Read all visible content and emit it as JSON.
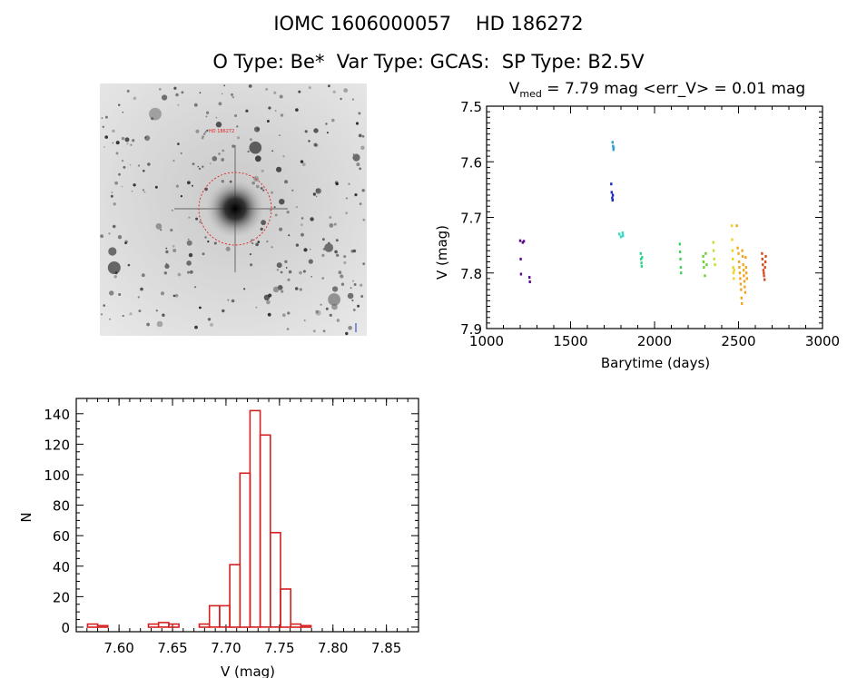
{
  "header": {
    "title_line1": "IOMC 1606000057    HD 186272",
    "title_line2": "O Type: Be*  Var Type: GCAS:  SP Type: B2.5V"
  },
  "finder": {
    "target_label": "HD 186272",
    "corner_tl": "",
    "corner_bl": "",
    "corner_bc": "",
    "corner_br": ""
  },
  "chart_data": [
    {
      "type": "scatter",
      "title_parts": [
        "V",
        "med",
        " = 7.79 mag <err_V> = 0.01 mag"
      ],
      "xlabel": "Barytime (days)",
      "ylabel": "V (mag)",
      "xlim": [
        1000,
        3000
      ],
      "ylim": [
        7.9,
        7.5
      ],
      "y_inverted": true,
      "xticks": [
        1000,
        1500,
        2000,
        2500,
        3000
      ],
      "yticks": [
        7.5,
        7.6,
        7.7,
        7.8,
        7.9
      ],
      "groups": [
        {
          "color": "#5a0a8c",
          "points": [
            [
              1200,
              7.742
            ],
            [
              1203,
              7.775
            ],
            [
              1205,
              7.802
            ],
            [
              1215,
              7.745
            ],
            [
              1222,
              7.743
            ],
            [
              1255,
              7.808
            ],
            [
              1258,
              7.816
            ]
          ]
        },
        {
          "color": "#1a2fb8",
          "points": [
            [
              1742,
              7.64
            ],
            [
              1745,
              7.655
            ],
            [
              1748,
              7.665
            ],
            [
              1750,
              7.669
            ],
            [
              1752,
              7.66
            ]
          ]
        },
        {
          "color": "#2e9fd6",
          "points": [
            [
              1750,
              7.565
            ],
            [
              1753,
              7.572
            ],
            [
              1755,
              7.578
            ],
            [
              1757,
              7.575
            ]
          ]
        },
        {
          "color": "#33d6c4",
          "points": [
            [
              1790,
              7.73
            ],
            [
              1800,
              7.735
            ],
            [
              1810,
              7.728
            ],
            [
              1812,
              7.733
            ]
          ]
        },
        {
          "color": "#2fd48a",
          "points": [
            [
              1918,
              7.765
            ],
            [
              1920,
              7.775
            ],
            [
              1922,
              7.782
            ],
            [
              1924,
              7.788
            ],
            [
              1926,
              7.772
            ]
          ]
        },
        {
          "color": "#3fd35a",
          "points": [
            [
              2150,
              7.748
            ],
            [
              2152,
              7.762
            ],
            [
              2154,
              7.775
            ],
            [
              2156,
              7.79
            ],
            [
              2158,
              7.8
            ]
          ]
        },
        {
          "color": "#6dd035",
          "points": [
            [
              2290,
              7.77
            ],
            [
              2292,
              7.78
            ],
            [
              2294,
              7.79
            ],
            [
              2300,
              7.805
            ],
            [
              2305,
              7.765
            ],
            [
              2310,
              7.785
            ]
          ]
        },
        {
          "color": "#c8dc28",
          "points": [
            [
              2350,
              7.745
            ],
            [
              2352,
              7.76
            ],
            [
              2355,
              7.775
            ],
            [
              2360,
              7.785
            ]
          ]
        },
        {
          "color": "#f1d31f",
          "points": [
            [
              2460,
              7.715
            ],
            [
              2462,
              7.74
            ],
            [
              2464,
              7.76
            ],
            [
              2466,
              7.775
            ],
            [
              2468,
              7.79
            ],
            [
              2470,
              7.8
            ],
            [
              2472,
              7.81
            ],
            [
              2474,
              7.795
            ]
          ]
        },
        {
          "color": "#f0a51a",
          "points": [
            [
              2490,
              7.715
            ],
            [
              2495,
              7.755
            ],
            [
              2500,
              7.765
            ],
            [
              2503,
              7.78
            ],
            [
              2505,
              7.79
            ],
            [
              2508,
              7.8
            ],
            [
              2510,
              7.81
            ],
            [
              2513,
              7.82
            ],
            [
              2515,
              7.83
            ],
            [
              2518,
              7.845
            ],
            [
              2520,
              7.855
            ],
            [
              2522,
              7.76
            ],
            [
              2525,
              7.77
            ],
            [
              2528,
              7.785
            ],
            [
              2530,
              7.795
            ],
            [
              2532,
              7.805
            ],
            [
              2535,
              7.815
            ],
            [
              2537,
              7.825
            ],
            [
              2540,
              7.835
            ],
            [
              2542,
              7.772
            ],
            [
              2545,
              7.79
            ],
            [
              2547,
              7.8
            ],
            [
              2550,
              7.81
            ]
          ]
        },
        {
          "color": "#d94b1f",
          "points": [
            [
              2640,
              7.765
            ],
            [
              2642,
              7.775
            ],
            [
              2645,
              7.785
            ],
            [
              2648,
              7.795
            ],
            [
              2650,
              7.8
            ],
            [
              2652,
              7.805
            ],
            [
              2655,
              7.812
            ],
            [
              2658,
              7.79
            ],
            [
              2660,
              7.78
            ],
            [
              2662,
              7.77
            ]
          ]
        }
      ]
    },
    {
      "type": "bar",
      "xlabel": "V (mag)",
      "ylabel": "N",
      "xlim": [
        7.56,
        7.88
      ],
      "ylim": [
        -3,
        150
      ],
      "xticks": [
        7.6,
        7.65,
        7.7,
        7.75,
        7.8,
        7.85
      ],
      "xtick_labels": [
        "7.60",
        "7.65",
        "7.70",
        "7.75",
        "7.80",
        "7.85"
      ],
      "yticks": [
        0,
        20,
        40,
        60,
        80,
        100,
        120,
        140
      ],
      "bin_start": 7.5705,
      "bin_width": 0.0095,
      "counts": [
        2,
        1,
        0,
        0,
        0,
        0,
        2,
        3,
        2,
        0,
        0,
        2,
        14,
        14,
        41,
        101,
        142,
        126,
        62,
        25,
        2,
        1
      ],
      "color": "#d42020"
    }
  ]
}
